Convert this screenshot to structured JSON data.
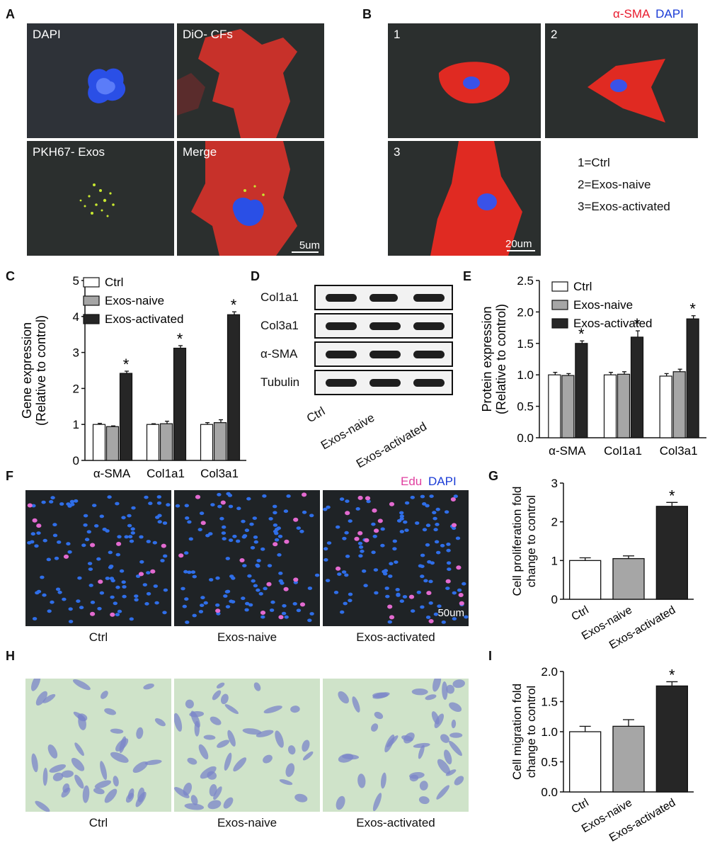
{
  "panels": {
    "A": {
      "letter": "A",
      "tiles": [
        "DAPI",
        "DiO- CFs",
        "PKH67- Exos",
        "Merge"
      ],
      "scale_bar": "5um"
    },
    "B": {
      "letter": "B",
      "legend_red": "α-SMA",
      "legend_blue": "DAPI",
      "tiles": [
        "1",
        "2",
        "3"
      ],
      "key": [
        "1=Ctrl",
        "2=Exos-naive",
        "3=Exos-activated"
      ],
      "scale_bar": "20um"
    },
    "C": {
      "letter": "C"
    },
    "D": {
      "letter": "D",
      "rows": [
        "Col1a1",
        "Col3a1",
        "α-SMA",
        "Tubulin"
      ],
      "lanes": [
        "Ctrl",
        "Exos-naive",
        "Exos-activated"
      ]
    },
    "E": {
      "letter": "E"
    },
    "F": {
      "letter": "F",
      "legend_pink": "Edu",
      "legend_blue": "DAPI",
      "captions": [
        "Ctrl",
        "Exos-naive",
        "Exos-activated"
      ],
      "scale_bar": "50um"
    },
    "G": {
      "letter": "G"
    },
    "H": {
      "letter": "H",
      "captions": [
        "Ctrl",
        "Exos-naive",
        "Exos-activated"
      ]
    },
    "I": {
      "letter": "I"
    }
  },
  "colors": {
    "ctrl": "#ffffff",
    "naive": "#a6a6a6",
    "activated": "#262626",
    "alpha_sma": "#e8192c",
    "dapi": "#1a3bd6",
    "edu": "#e040a0"
  },
  "chart_data": [
    {
      "id": "C",
      "type": "bar",
      "ylabel": "Gene expression\n(Relative to control)",
      "categories": [
        "α-SMA",
        "Col1a1",
        "Col3a1"
      ],
      "ylim": [
        0,
        5
      ],
      "yticks": [
        0,
        1,
        2,
        3,
        4,
        5
      ],
      "series": [
        {
          "name": "Ctrl",
          "values": [
            1.0,
            1.0,
            1.0
          ],
          "err": [
            0.03,
            0.02,
            0.05
          ]
        },
        {
          "name": "Exos-naive",
          "values": [
            0.94,
            1.02,
            1.05
          ],
          "err": [
            0.02,
            0.07,
            0.08
          ]
        },
        {
          "name": "Exos-activated",
          "values": [
            2.42,
            3.12,
            4.05
          ],
          "err": [
            0.06,
            0.07,
            0.08
          ]
        }
      ],
      "annotations": [
        "*",
        "*",
        "*"
      ]
    },
    {
      "id": "E",
      "type": "bar",
      "ylabel": "Protein expression\n(Relative to control)",
      "categories": [
        "α-SMA",
        "Col1a1",
        "Col3a1"
      ],
      "ylim": [
        0,
        2.5
      ],
      "yticks": [
        "0.0",
        "0.5",
        "1.0",
        "1.5",
        "2.0",
        "2.5"
      ],
      "series": [
        {
          "name": "Ctrl",
          "values": [
            1.0,
            1.0,
            0.98
          ],
          "err": [
            0.04,
            0.04,
            0.04
          ]
        },
        {
          "name": "Exos-naive",
          "values": [
            0.99,
            1.01,
            1.05
          ],
          "err": [
            0.03,
            0.04,
            0.04
          ]
        },
        {
          "name": "Exos-activated",
          "values": [
            1.5,
            1.6,
            1.89
          ],
          "err": [
            0.04,
            0.1,
            0.05
          ]
        }
      ],
      "annotations": [
        "*",
        "*",
        "*"
      ]
    },
    {
      "id": "G",
      "type": "bar",
      "ylabel": "Cell proliferation fold\nchange to control",
      "categories": [
        "Ctrl",
        "Exos-naive",
        "Exos-activated"
      ],
      "ylim": [
        0,
        3
      ],
      "yticks": [
        0,
        1,
        2,
        3
      ],
      "values": [
        1.0,
        1.05,
        2.4
      ],
      "err": [
        0.07,
        0.07,
        0.1
      ],
      "annotations": [
        "",
        "",
        "*"
      ]
    },
    {
      "id": "I",
      "type": "bar",
      "ylabel": "Cell migration fold\nchange to control",
      "categories": [
        "Ctrl",
        "Exos-naive",
        "Exos-activated"
      ],
      "ylim": [
        0,
        2
      ],
      "yticks": [
        "0.0",
        "0.5",
        "1.0",
        "1.5",
        "2.0"
      ],
      "values": [
        1.0,
        1.09,
        1.76
      ],
      "err": [
        0.09,
        0.11,
        0.07
      ],
      "annotations": [
        "",
        "",
        "*"
      ]
    }
  ]
}
